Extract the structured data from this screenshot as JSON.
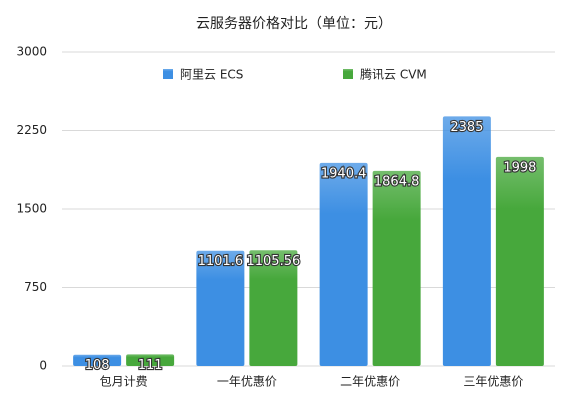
{
  "chart_data": {
    "type": "bar",
    "title": "云服务器价格对比（单位：元）",
    "categories": [
      "包月计费",
      "一年优惠价",
      "二年优惠价",
      "三年优惠价"
    ],
    "series": [
      {
        "name": "阿里云 ECS",
        "color": "#3d8fe3",
        "values": [
          108,
          1101.6,
          1940.4,
          2385
        ]
      },
      {
        "name": "腾讯云 CVM",
        "color": "#47a83c",
        "values": [
          111,
          1105.56,
          1864.8,
          1998
        ]
      }
    ],
    "ylim": [
      0,
      3000
    ],
    "yticks": [
      0,
      750,
      1500,
      2250,
      3000
    ],
    "grid": true,
    "legend": "top"
  }
}
